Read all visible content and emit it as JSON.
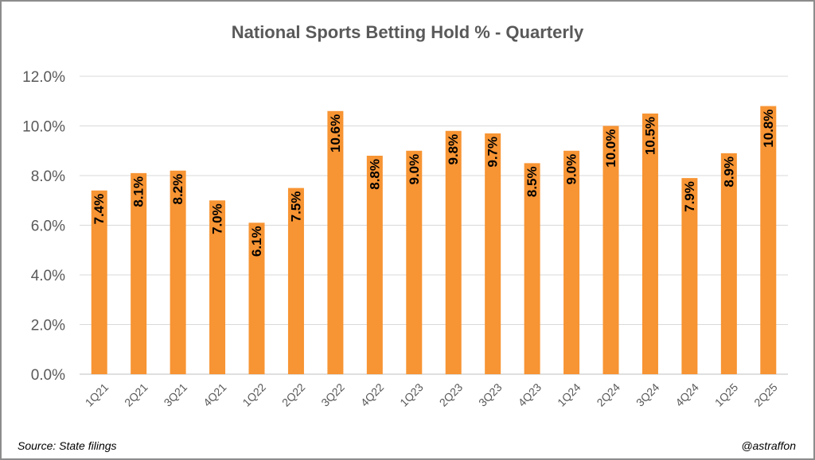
{
  "chart_data": {
    "type": "bar",
    "title": "National Sports Betting Hold % - Quarterly",
    "categories": [
      "1Q21",
      "2Q21",
      "3Q21",
      "4Q21",
      "1Q22",
      "2Q22",
      "3Q22",
      "4Q22",
      "1Q23",
      "2Q23",
      "3Q23",
      "4Q23",
      "1Q24",
      "2Q24",
      "3Q24",
      "4Q24",
      "1Q25",
      "2Q25"
    ],
    "values": [
      7.4,
      8.1,
      8.2,
      7.0,
      6.1,
      7.5,
      10.6,
      8.8,
      9.0,
      9.8,
      9.7,
      8.5,
      9.0,
      10.0,
      10.5,
      7.9,
      8.9,
      10.8
    ],
    "data_labels": [
      "7.4%",
      "8.1%",
      "8.2%",
      "7.0%",
      "6.1%",
      "7.5%",
      "10.6%",
      "8.8%",
      "9.0%",
      "9.8%",
      "9.7%",
      "8.5%",
      "9.0%",
      "10.0%",
      "10.5%",
      "7.9%",
      "8.9%",
      "10.8%"
    ],
    "y_ticks": [
      0,
      2,
      4,
      6,
      8,
      10,
      12
    ],
    "y_tick_labels": [
      "0.0%",
      "2.0%",
      "4.0%",
      "6.0%",
      "8.0%",
      "10.0%",
      "12.0%"
    ],
    "ylim": [
      0,
      12
    ],
    "grid": true,
    "legend": "none",
    "bar_color": "#F79433",
    "xlabel": "",
    "ylabel": ""
  },
  "footer": {
    "source": "Source: State filings",
    "credit": "@astraffon"
  }
}
